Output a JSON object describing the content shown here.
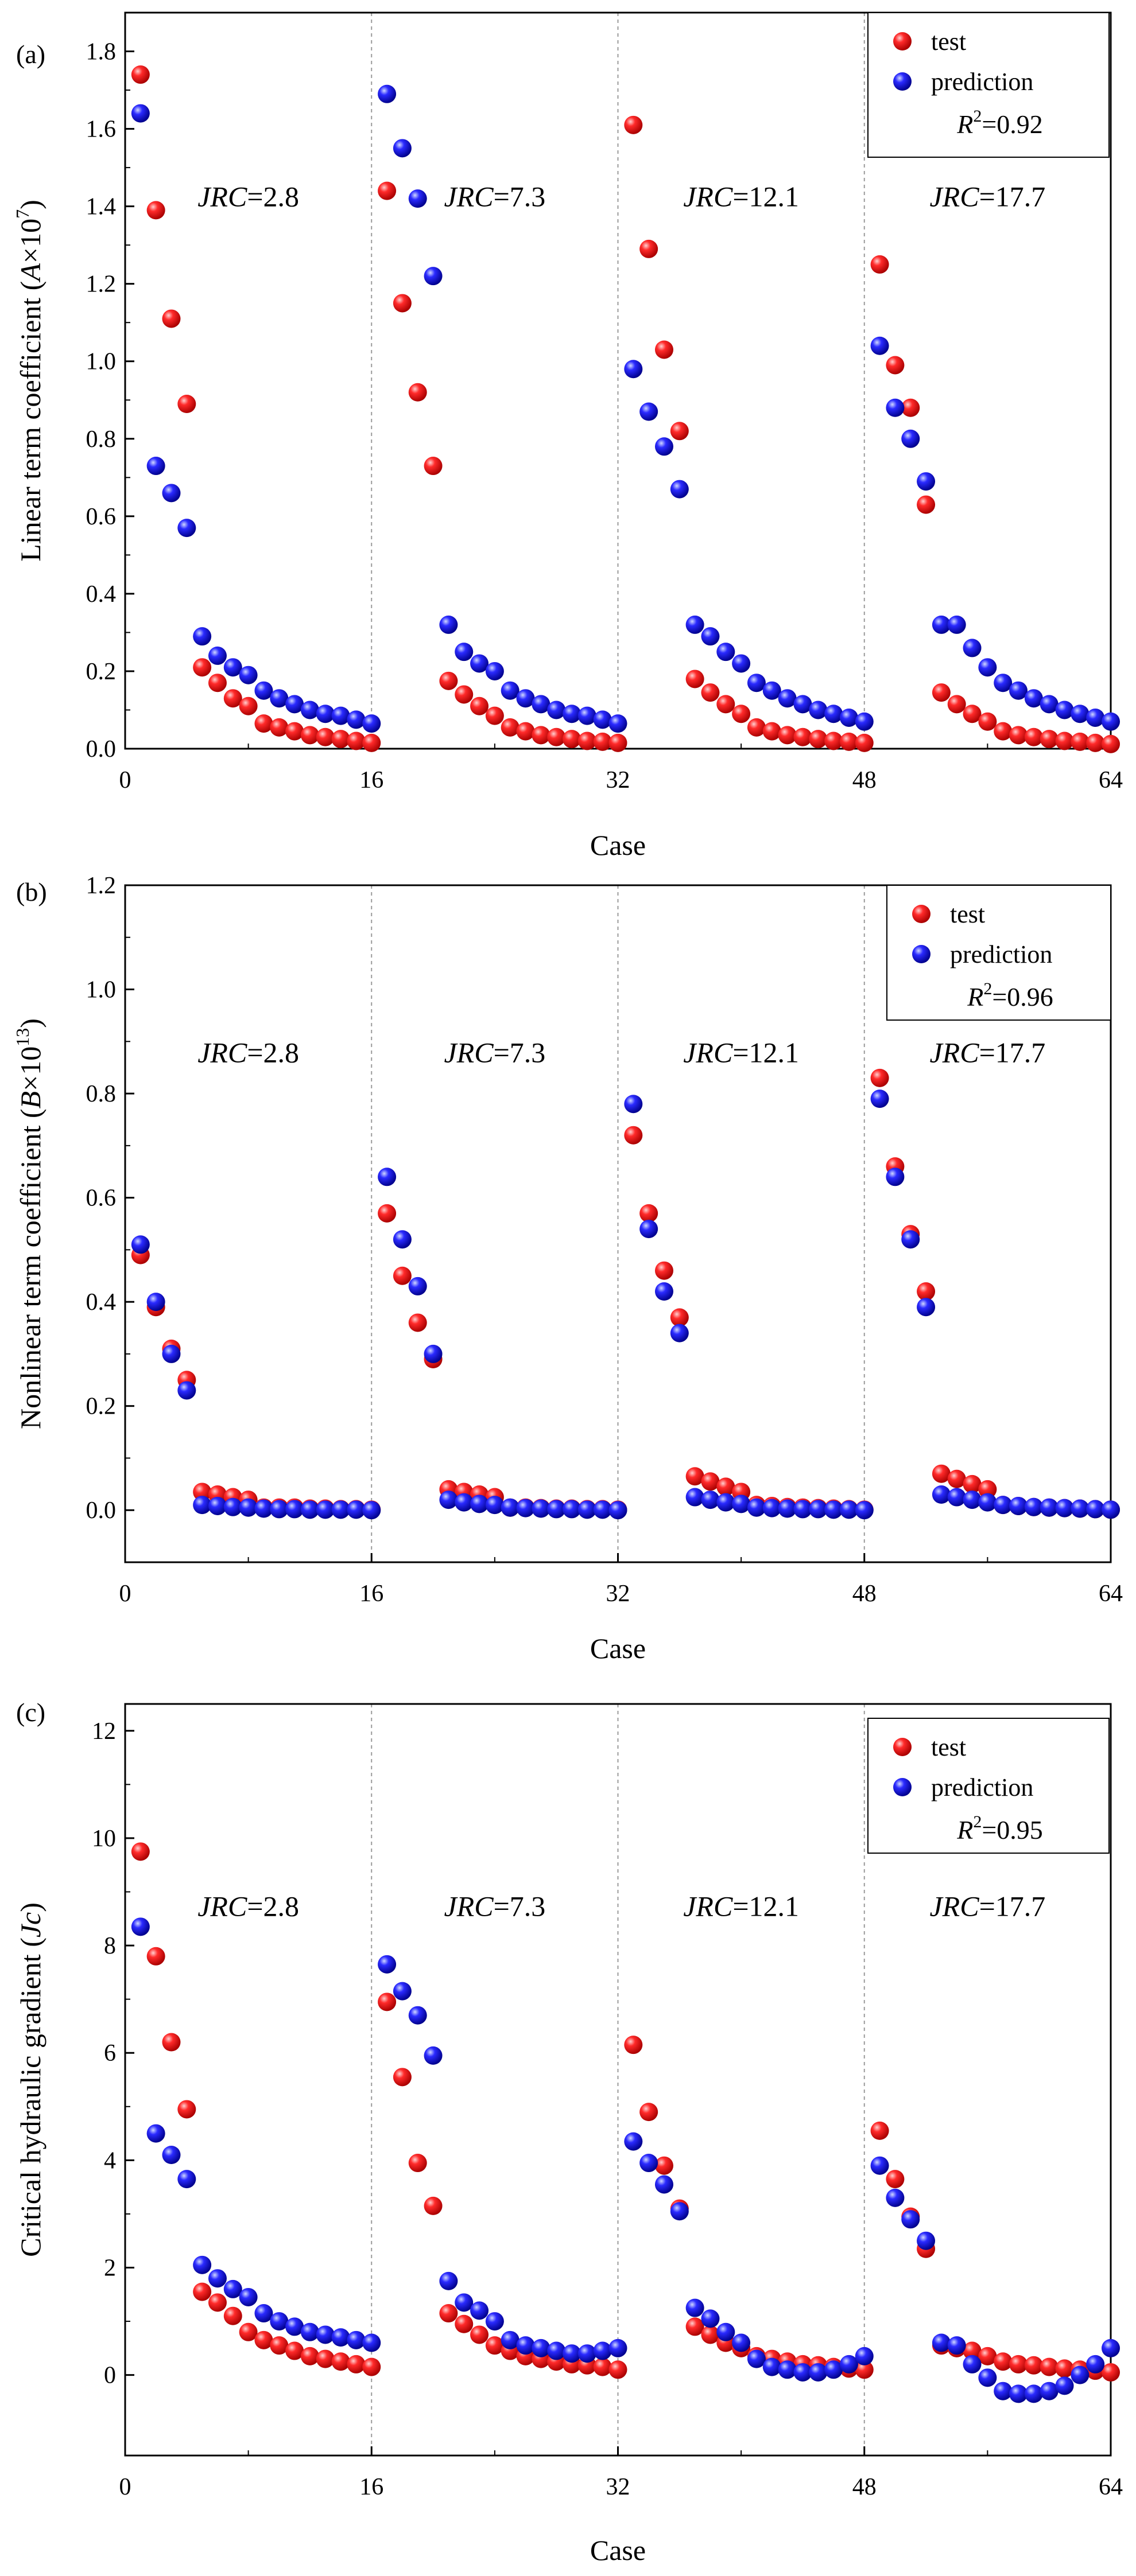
{
  "chart_data": [
    {
      "type": "scatter",
      "panel_label": "(a)",
      "xlabel": "Case",
      "ylabel": {
        "main": "Linear term coefficient (",
        "var": "A",
        "times": "×10",
        "exp": "7",
        "close": ")"
      },
      "xlim": [
        0,
        64
      ],
      "ylim": [
        0,
        1.9
      ],
      "xticks": [
        0,
        16,
        32,
        48,
        64
      ],
      "xtick_labels": [
        "0",
        "16",
        "32",
        "48",
        "64"
      ],
      "yticks": [
        0,
        0.2,
        0.4,
        0.6,
        0.8,
        1.0,
        1.2,
        1.4,
        1.6,
        1.8
      ],
      "ytick_labels": [
        "0.0",
        "0.2",
        "0.4",
        "0.6",
        "0.8",
        "1.0",
        "1.2",
        "1.4",
        "1.6",
        "1.8"
      ],
      "group_dividers": [
        16,
        32,
        48
      ],
      "groups": [
        {
          "prefix": "JRC",
          "value": "=2.8",
          "x_center": 8
        },
        {
          "prefix": "JRC",
          "value": "=7.3",
          "x_center": 24
        },
        {
          "prefix": "JRC",
          "value": "=12.1",
          "x_center": 40
        },
        {
          "prefix": "JRC",
          "value": "=17.7",
          "x_center": 56
        }
      ],
      "group_label_y": 1.4,
      "legend": {
        "position": "top-right",
        "entries": [
          {
            "label": "test",
            "color": "#e8000b"
          },
          {
            "label": "prediction",
            "color": "#1010e0"
          }
        ],
        "r2_symbol": "R",
        "r2_exp": "2",
        "r2_value": "=0.92"
      },
      "x": [
        1,
        2,
        3,
        4,
        5,
        6,
        7,
        8,
        9,
        10,
        11,
        12,
        13,
        14,
        15,
        16,
        17,
        18,
        19,
        20,
        21,
        22,
        23,
        24,
        25,
        26,
        27,
        28,
        29,
        30,
        31,
        32,
        33,
        34,
        35,
        36,
        37,
        38,
        39,
        40,
        41,
        42,
        43,
        44,
        45,
        46,
        47,
        48,
        49,
        50,
        51,
        52,
        53,
        54,
        55,
        56,
        57,
        58,
        59,
        60,
        61,
        62,
        63,
        64
      ],
      "series": [
        {
          "name": "test",
          "color": "#e8000b",
          "values": [
            1.74,
            1.39,
            1.11,
            0.89,
            0.21,
            0.17,
            0.13,
            0.11,
            0.065,
            0.055,
            0.045,
            0.035,
            0.03,
            0.025,
            0.02,
            0.015,
            1.44,
            1.15,
            0.92,
            0.73,
            0.175,
            0.14,
            0.11,
            0.085,
            0.055,
            0.045,
            0.035,
            0.03,
            0.025,
            0.02,
            0.018,
            0.015,
            1.61,
            1.29,
            1.03,
            0.82,
            0.18,
            0.145,
            0.115,
            0.09,
            0.055,
            0.045,
            0.035,
            0.03,
            0.025,
            0.02,
            0.018,
            0.015,
            1.25,
            0.99,
            0.88,
            0.63,
            0.145,
            0.115,
            0.09,
            0.07,
            0.045,
            0.035,
            0.03,
            0.025,
            0.02,
            0.018,
            0.015,
            0.012
          ]
        },
        {
          "name": "prediction",
          "color": "#1010e0",
          "values": [
            1.64,
            0.73,
            0.66,
            0.57,
            0.29,
            0.24,
            0.21,
            0.19,
            0.15,
            0.13,
            0.115,
            0.1,
            0.09,
            0.085,
            0.075,
            0.065,
            1.69,
            1.55,
            1.42,
            1.22,
            0.32,
            0.25,
            0.22,
            0.2,
            0.15,
            0.13,
            0.115,
            0.1,
            0.09,
            0.085,
            0.075,
            0.065,
            0.98,
            0.87,
            0.78,
            0.67,
            0.32,
            0.29,
            0.25,
            0.22,
            0.17,
            0.15,
            0.13,
            0.115,
            0.1,
            0.09,
            0.08,
            0.07,
            1.04,
            0.88,
            0.8,
            0.69,
            0.32,
            0.32,
            0.26,
            0.21,
            0.17,
            0.15,
            0.13,
            0.115,
            0.1,
            0.09,
            0.08,
            0.07
          ]
        }
      ]
    },
    {
      "type": "scatter",
      "panel_label": "(b)",
      "xlabel": "Case",
      "ylabel": {
        "main": "Nonlinear term coefficient (",
        "var": "B",
        "times": "×10",
        "exp": "13",
        "close": ")"
      },
      "xlim": [
        0,
        64
      ],
      "ylim": [
        -0.1,
        1.2
      ],
      "xticks": [
        0,
        16,
        32,
        48,
        64
      ],
      "xtick_labels": [
        "0",
        "16",
        "32",
        "48",
        "64"
      ],
      "yticks": [
        0,
        0.2,
        0.4,
        0.6,
        0.8,
        1.0,
        1.2
      ],
      "ytick_labels": [
        "0.0",
        "0.2",
        "0.4",
        "0.6",
        "0.8",
        "1.0",
        "1.2"
      ],
      "group_dividers": [
        16,
        32,
        48
      ],
      "groups": [
        {
          "prefix": "JRC",
          "value": "=2.8",
          "x_center": 8
        },
        {
          "prefix": "JRC",
          "value": "=7.3",
          "x_center": 24
        },
        {
          "prefix": "JRC",
          "value": "=12.1",
          "x_center": 40
        },
        {
          "prefix": "JRC",
          "value": "=17.7",
          "x_center": 56
        }
      ],
      "group_label_y": 0.86,
      "legend": {
        "position": "top-right",
        "entries": [
          {
            "label": "test",
            "color": "#e8000b"
          },
          {
            "label": "prediction",
            "color": "#1010e0"
          }
        ],
        "r2_symbol": "R",
        "r2_exp": "2",
        "r2_value": "=0.96"
      },
      "x": [
        1,
        2,
        3,
        4,
        5,
        6,
        7,
        8,
        9,
        10,
        11,
        12,
        13,
        14,
        15,
        16,
        17,
        18,
        19,
        20,
        21,
        22,
        23,
        24,
        25,
        26,
        27,
        28,
        29,
        30,
        31,
        32,
        33,
        34,
        35,
        36,
        37,
        38,
        39,
        40,
        41,
        42,
        43,
        44,
        45,
        46,
        47,
        48,
        49,
        50,
        51,
        52,
        53,
        54,
        55,
        56,
        57,
        58,
        59,
        60,
        61,
        62,
        63,
        64
      ],
      "series": [
        {
          "name": "test",
          "color": "#e8000b",
          "values": [
            0.49,
            0.39,
            0.31,
            0.25,
            0.035,
            0.03,
            0.025,
            0.02,
            0.005,
            0.005,
            0.005,
            0.003,
            0.003,
            0.002,
            0.002,
            0.001,
            0.57,
            0.45,
            0.36,
            0.29,
            0.04,
            0.035,
            0.03,
            0.025,
            0.005,
            0.005,
            0.004,
            0.003,
            0.003,
            0.002,
            0.002,
            0.001,
            0.72,
            0.57,
            0.46,
            0.37,
            0.065,
            0.055,
            0.045,
            0.035,
            0.01,
            0.008,
            0.006,
            0.005,
            0.004,
            0.003,
            0.002,
            0.001,
            0.83,
            0.66,
            0.53,
            0.42,
            0.07,
            0.06,
            0.05,
            0.04,
            0.01,
            0.008,
            0.006,
            0.005,
            0.004,
            0.003,
            0.002,
            0.001
          ]
        },
        {
          "name": "prediction",
          "color": "#1010e0",
          "values": [
            0.51,
            0.4,
            0.3,
            0.23,
            0.01,
            0.008,
            0.006,
            0.005,
            0.003,
            0.002,
            0.002,
            0.001,
            0.001,
            0.001,
            0.001,
            0.0,
            0.64,
            0.52,
            0.43,
            0.3,
            0.02,
            0.015,
            0.012,
            0.01,
            0.005,
            0.004,
            0.003,
            0.002,
            0.002,
            0.001,
            0.001,
            0.0,
            0.78,
            0.54,
            0.42,
            0.34,
            0.025,
            0.02,
            0.015,
            0.012,
            0.005,
            0.004,
            0.003,
            0.002,
            0.002,
            0.001,
            0.001,
            0.0,
            0.79,
            0.64,
            0.52,
            0.39,
            0.03,
            0.025,
            0.02,
            0.015,
            0.01,
            0.008,
            0.006,
            0.005,
            0.004,
            0.003,
            0.002,
            0.001
          ]
        }
      ]
    },
    {
      "type": "scatter",
      "panel_label": "(c)",
      "xlabel": "Case",
      "ylabel": {
        "main": "Critical hydraulic gradient (",
        "var": "Jc",
        "times": "",
        "exp": "",
        "close": ")"
      },
      "xlim": [
        0,
        64
      ],
      "ylim": [
        -1.5,
        12.5
      ],
      "xticks": [
        0,
        16,
        32,
        48,
        64
      ],
      "xtick_labels": [
        "0",
        "16",
        "32",
        "48",
        "64"
      ],
      "yticks": [
        0,
        2,
        4,
        6,
        8,
        10,
        12
      ],
      "ytick_labels": [
        "0",
        "2",
        "4",
        "6",
        "8",
        "10",
        "12"
      ],
      "group_dividers": [
        16,
        32,
        48
      ],
      "groups": [
        {
          "prefix": "JRC",
          "value": "=2.8",
          "x_center": 8
        },
        {
          "prefix": "JRC",
          "value": "=7.3",
          "x_center": 24
        },
        {
          "prefix": "JRC",
          "value": "=12.1",
          "x_center": 40
        },
        {
          "prefix": "JRC",
          "value": "=17.7",
          "x_center": 56
        }
      ],
      "group_label_y": 8.55,
      "legend": {
        "position": "top-right",
        "entries": [
          {
            "label": "test",
            "color": "#e8000b"
          },
          {
            "label": "prediction",
            "color": "#1010e0"
          }
        ],
        "r2_symbol": "R",
        "r2_exp": "2",
        "r2_value": "=0.95"
      },
      "x": [
        1,
        2,
        3,
        4,
        5,
        6,
        7,
        8,
        9,
        10,
        11,
        12,
        13,
        14,
        15,
        16,
        17,
        18,
        19,
        20,
        21,
        22,
        23,
        24,
        25,
        26,
        27,
        28,
        29,
        30,
        31,
        32,
        33,
        34,
        35,
        36,
        37,
        38,
        39,
        40,
        41,
        42,
        43,
        44,
        45,
        46,
        47,
        48,
        49,
        50,
        51,
        52,
        53,
        54,
        55,
        56,
        57,
        58,
        59,
        60,
        61,
        62,
        63,
        64
      ],
      "series": [
        {
          "name": "test",
          "color": "#e8000b",
          "values": [
            9.75,
            7.8,
            6.2,
            4.95,
            1.55,
            1.35,
            1.1,
            0.8,
            0.65,
            0.55,
            0.45,
            0.35,
            0.3,
            0.25,
            0.2,
            0.15,
            6.95,
            5.55,
            3.95,
            3.15,
            1.15,
            0.95,
            0.75,
            0.55,
            0.45,
            0.35,
            0.3,
            0.25,
            0.2,
            0.18,
            0.15,
            0.1,
            6.15,
            4.9,
            3.9,
            3.1,
            0.9,
            0.75,
            0.6,
            0.5,
            0.35,
            0.3,
            0.25,
            0.2,
            0.18,
            0.15,
            0.12,
            0.1,
            4.55,
            3.65,
            2.95,
            2.35,
            0.55,
            0.5,
            0.45,
            0.35,
            0.25,
            0.2,
            0.18,
            0.15,
            0.12,
            0.1,
            0.08,
            0.05
          ]
        },
        {
          "name": "prediction",
          "color": "#1010e0",
          "values": [
            8.35,
            4.5,
            4.1,
            3.65,
            2.05,
            1.8,
            1.6,
            1.45,
            1.15,
            1.0,
            0.9,
            0.8,
            0.75,
            0.7,
            0.65,
            0.6,
            7.65,
            7.15,
            6.7,
            5.95,
            1.75,
            1.35,
            1.2,
            1.0,
            0.65,
            0.55,
            0.5,
            0.45,
            0.4,
            0.4,
            0.45,
            0.5,
            4.35,
            3.95,
            3.55,
            3.05,
            1.25,
            1.05,
            0.8,
            0.6,
            0.3,
            0.15,
            0.1,
            0.05,
            0.05,
            0.1,
            0.2,
            0.35,
            3.9,
            3.3,
            2.9,
            2.5,
            0.6,
            0.55,
            0.2,
            -0.05,
            -0.3,
            -0.35,
            -0.35,
            -0.3,
            -0.2,
            0.0,
            0.2,
            0.5
          ]
        }
      ]
    }
  ]
}
